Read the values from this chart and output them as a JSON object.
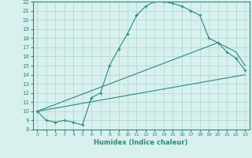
{
  "xlabel": "Humidex (Indice chaleur)",
  "xlim": [
    -0.5,
    23.5
  ],
  "ylim": [
    8,
    22
  ],
  "xticks": [
    0,
    1,
    2,
    3,
    4,
    5,
    6,
    7,
    8,
    9,
    10,
    11,
    12,
    13,
    14,
    15,
    16,
    17,
    18,
    19,
    20,
    21,
    22,
    23
  ],
  "yticks": [
    8,
    9,
    10,
    11,
    12,
    13,
    14,
    15,
    16,
    17,
    18,
    19,
    20,
    21,
    22
  ],
  "line_color": "#2e8b7a",
  "bg_color": "#d8f0ee",
  "grid_color": "#a8d8d0",
  "line1_x": [
    0,
    1,
    2,
    3,
    4,
    5,
    6,
    7,
    8,
    9,
    10,
    11,
    12,
    13,
    14,
    15,
    16,
    17,
    18,
    19,
    20,
    21,
    22,
    23
  ],
  "line1_y": [
    10,
    9,
    8.8,
    9,
    8.8,
    8.5,
    11.5,
    12,
    15,
    16.8,
    18.5,
    20.5,
    21.5,
    22,
    22,
    21.8,
    21.5,
    21,
    20.5,
    18,
    17.5,
    16.5,
    15.8,
    14.5
  ],
  "line2_x": [
    0,
    23
  ],
  "line2_y": [
    10,
    14
  ],
  "line3_x": [
    0,
    20,
    22,
    23
  ],
  "line3_y": [
    10,
    17.5,
    16.5,
    15
  ]
}
